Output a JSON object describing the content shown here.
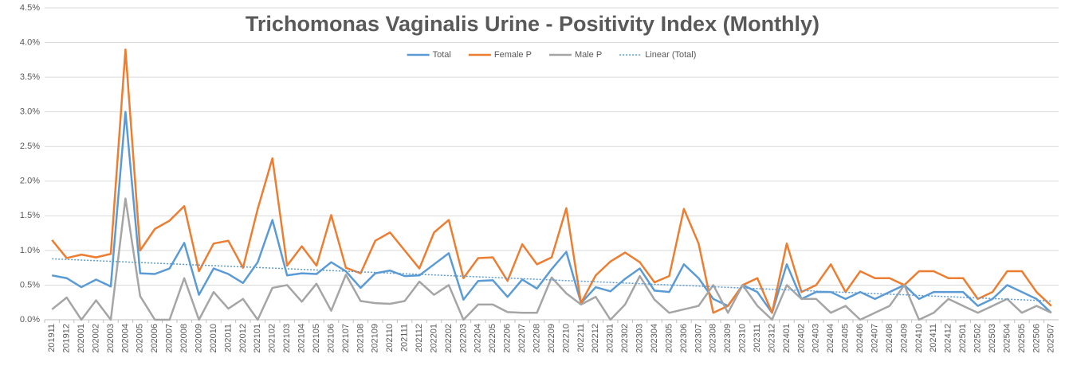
{
  "chart_data": {
    "type": "line",
    "title": "Trichomonas Vaginalis Urine - Positivity Index (Monthly)",
    "categories": [
      "201911",
      "201912",
      "202001",
      "202002",
      "202003",
      "202004",
      "202005",
      "202006",
      "202007",
      "202008",
      "202009",
      "202010",
      "202011",
      "202012",
      "202101",
      "202102",
      "202103",
      "202104",
      "202105",
      "202106",
      "202107",
      "202108",
      "202109",
      "202110",
      "202111",
      "202112",
      "202201",
      "202202",
      "202203",
      "202204",
      "202205",
      "202206",
      "202207",
      "202208",
      "202209",
      "202210",
      "202211",
      "202212",
      "202301",
      "202302",
      "202303",
      "202304",
      "202305",
      "202306",
      "202307",
      "202308",
      "202309",
      "202310",
      "202311",
      "202312",
      "202401",
      "202402",
      "202403",
      "202404",
      "202405",
      "202406",
      "202407",
      "202408",
      "202409",
      "202410",
      "202411",
      "202412",
      "202501",
      "202502",
      "202503",
      "202504",
      "202505",
      "202506",
      "202507"
    ],
    "series": [
      {
        "name": "Total",
        "color": "#5b9bd5",
        "values": [
          0.64,
          0.6,
          0.47,
          0.58,
          0.48,
          3.0,
          0.67,
          0.66,
          0.74,
          1.11,
          0.36,
          0.74,
          0.66,
          0.53,
          0.83,
          1.44,
          0.64,
          0.67,
          0.66,
          0.83,
          0.7,
          0.46,
          0.67,
          0.71,
          0.63,
          0.64,
          0.8,
          0.96,
          0.29,
          0.56,
          0.57,
          0.33,
          0.58,
          0.45,
          0.73,
          0.98,
          0.24,
          0.47,
          0.41,
          0.59,
          0.74,
          0.42,
          0.4,
          0.8,
          0.6,
          0.3,
          0.2,
          0.5,
          0.4,
          0.1,
          0.8,
          0.3,
          0.4,
          0.4,
          0.3,
          0.4,
          0.3,
          0.4,
          0.5,
          0.3,
          0.4,
          0.4,
          0.4,
          0.2,
          0.3,
          0.5,
          0.4,
          0.3,
          0.1
        ]
      },
      {
        "name": "Female P",
        "color": "#ed7d31",
        "values": [
          1.15,
          0.89,
          0.94,
          0.9,
          0.95,
          3.9,
          1.0,
          1.31,
          1.43,
          1.64,
          0.7,
          1.1,
          1.14,
          0.75,
          1.6,
          2.33,
          0.78,
          1.06,
          0.78,
          1.51,
          0.75,
          0.67,
          1.14,
          1.26,
          1.0,
          0.74,
          1.26,
          1.44,
          0.6,
          0.89,
          0.9,
          0.56,
          1.09,
          0.8,
          0.9,
          1.61,
          0.24,
          0.64,
          0.84,
          0.97,
          0.83,
          0.54,
          0.63,
          1.6,
          1.1,
          0.1,
          0.2,
          0.5,
          0.6,
          0.1,
          1.1,
          0.4,
          0.5,
          0.8,
          0.4,
          0.7,
          0.6,
          0.6,
          0.5,
          0.7,
          0.7,
          0.6,
          0.6,
          0.3,
          0.4,
          0.7,
          0.7,
          0.4,
          0.2
        ]
      },
      {
        "name": "Male P",
        "color": "#a5a5a5",
        "values": [
          0.15,
          0.32,
          0.0,
          0.28,
          0.0,
          1.75,
          0.34,
          0.0,
          0.0,
          0.6,
          0.0,
          0.4,
          0.16,
          0.3,
          0.0,
          0.46,
          0.5,
          0.26,
          0.52,
          0.13,
          0.65,
          0.27,
          0.24,
          0.23,
          0.27,
          0.55,
          0.36,
          0.5,
          0.0,
          0.22,
          0.22,
          0.11,
          0.1,
          0.1,
          0.61,
          0.38,
          0.22,
          0.33,
          0.0,
          0.22,
          0.63,
          0.29,
          0.1,
          0.15,
          0.2,
          0.5,
          0.1,
          0.5,
          0.2,
          0.0,
          0.5,
          0.3,
          0.3,
          0.1,
          0.2,
          0.0,
          0.1,
          0.2,
          0.5,
          0.0,
          0.1,
          0.3,
          0.2,
          0.1,
          0.2,
          0.3,
          0.1,
          0.2,
          0.1
        ]
      }
    ],
    "trendline": {
      "name": "Linear (Total)",
      "of": "Total",
      "kind": "linear",
      "color": "#5b9bd5"
    },
    "ylim": [
      0,
      4.5
    ],
    "yticks": [
      {
        "value": 0,
        "label": "0.0%"
      },
      {
        "value": 0.5,
        "label": "0.5%"
      },
      {
        "value": 1,
        "label": "1.0%"
      },
      {
        "value": 1.5,
        "label": "1.5%"
      },
      {
        "value": 2,
        "label": "2.0%"
      },
      {
        "value": 2.5,
        "label": "2.5%"
      },
      {
        "value": 3,
        "label": "3.0%"
      },
      {
        "value": 3.5,
        "label": "3.5%"
      },
      {
        "value": 4,
        "label": "4.0%"
      },
      {
        "value": 4.5,
        "label": "4.5%"
      }
    ],
    "grid": true,
    "legend": "top"
  }
}
